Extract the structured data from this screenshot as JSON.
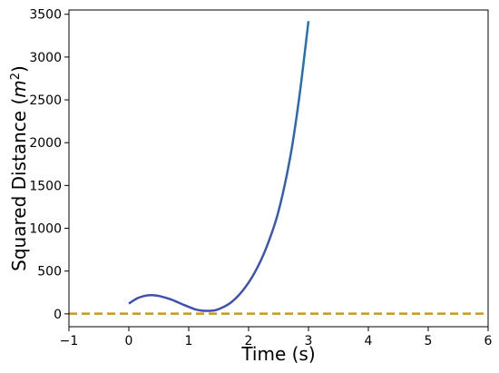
{
  "chart_data": {
    "type": "line",
    "xlabel": "Time (s)",
    "ylabel_prefix": "Squared Distance (",
    "ylabel_unit_base": "m",
    "ylabel_unit_exp": "2",
    "ylabel_suffix": ")",
    "xlim": [
      -1,
      6
    ],
    "ylim": [
      -150,
      3550
    ],
    "xticks": [
      -1,
      0,
      1,
      2,
      3,
      4,
      5,
      6
    ],
    "xtick_labels": [
      "−1",
      "0",
      "1",
      "2",
      "3",
      "4",
      "5",
      "6"
    ],
    "yticks": [
      0,
      500,
      1000,
      1500,
      2000,
      2500,
      3000,
      3500
    ],
    "ytick_labels": [
      "0",
      "500",
      "1000",
      "1500",
      "2000",
      "2500",
      "3000",
      "3500"
    ],
    "grid": false,
    "series": [
      {
        "style": "solid",
        "color_start": "#3f4fb3",
        "color_end": "#1f77b4",
        "x": [
          0,
          0.15,
          0.3,
          0.4,
          0.5,
          0.7,
          0.9,
          1.1,
          1.2,
          1.3,
          1.4,
          1.5,
          1.7,
          1.9,
          2.1,
          2.3,
          2.5,
          2.7,
          2.85,
          3.0
        ],
        "y": [
          120,
          185,
          215,
          218,
          210,
          170,
          110,
          55,
          40,
          35,
          38,
          55,
          130,
          270,
          480,
          780,
          1200,
          1850,
          2550,
          3420
        ]
      },
      {
        "style": "dashed",
        "color": "#c89a1a",
        "x": [
          -1,
          6
        ],
        "y": [
          3,
          3
        ]
      }
    ]
  }
}
